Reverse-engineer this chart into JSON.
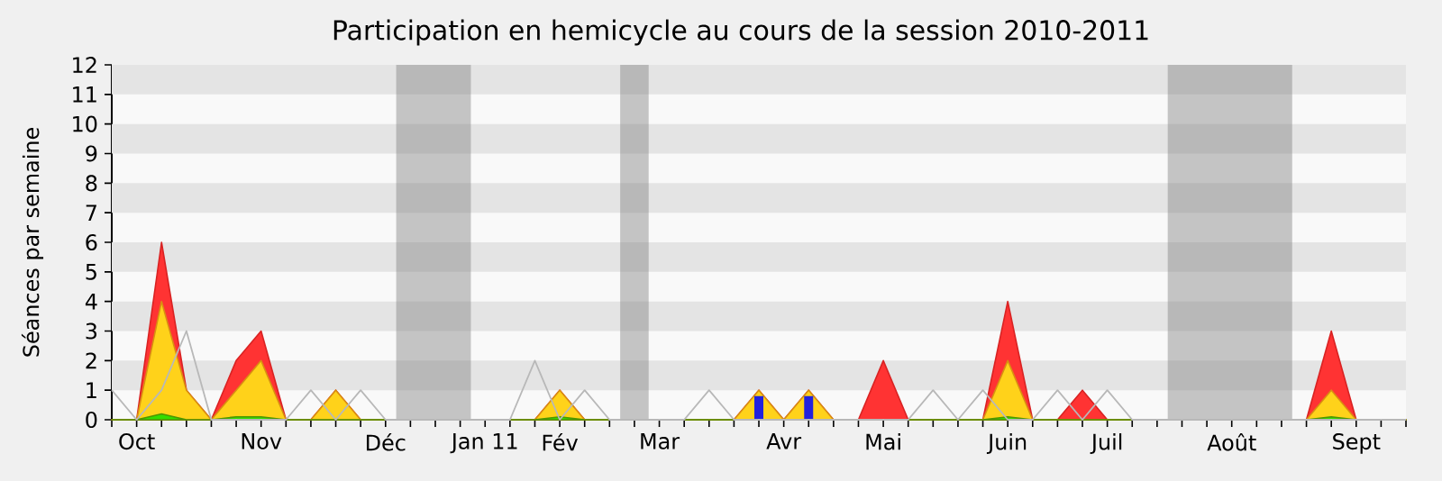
{
  "chart_data": {
    "type": "area",
    "title": "Participation en hemicycle au cours de la session 2010-2011",
    "ylabel": "Séances par semaine",
    "x": [
      "2010-09-28",
      "2010-10-05",
      "2010-10-12",
      "2010-10-19",
      "2010-10-26",
      "2010-11-02",
      "2010-11-09",
      "2010-11-16",
      "2010-11-23",
      "2010-11-30",
      "2010-12-07",
      "2010-12-14",
      "2010-12-21",
      "2010-12-28",
      "2011-01-04",
      "2011-01-11",
      "2011-01-18",
      "2011-01-25",
      "2011-02-01",
      "2011-02-08",
      "2011-02-15",
      "2011-02-22",
      "2011-03-01",
      "2011-03-08",
      "2011-03-15",
      "2011-03-22",
      "2011-03-29",
      "2011-04-05",
      "2011-04-12",
      "2011-04-19",
      "2011-04-26",
      "2011-05-03",
      "2011-05-10",
      "2011-05-17",
      "2011-05-24",
      "2011-05-31",
      "2011-06-07",
      "2011-06-14",
      "2011-06-21",
      "2011-06-28",
      "2011-07-05",
      "2011-07-12",
      "2011-07-19",
      "2011-07-26",
      "2011-08-02",
      "2011-08-09",
      "2011-08-16",
      "2011-08-23",
      "2011-08-30",
      "2011-09-06",
      "2011-09-13",
      "2011-09-20",
      "2011-09-27"
    ],
    "series": [
      {
        "color": "#ff3333",
        "values": [
          0,
          0,
          6,
          1,
          0,
          2,
          3,
          0,
          0,
          1,
          0,
          0,
          0,
          0,
          0,
          0,
          0,
          0,
          1,
          0,
          0,
          0,
          0,
          0,
          0,
          0,
          1,
          0,
          1,
          0,
          0,
          2,
          0,
          0,
          0,
          0,
          4,
          0,
          0,
          1,
          0,
          0,
          0,
          0,
          0,
          0,
          0,
          0,
          0,
          3,
          0,
          0,
          0
        ]
      },
      {
        "color": "#ffd21a",
        "values": [
          0,
          0,
          4,
          1,
          0,
          1,
          2,
          0,
          0,
          1,
          0,
          0,
          0,
          0,
          0,
          0,
          0,
          0,
          1,
          0,
          0,
          0,
          0,
          0,
          0,
          0,
          1,
          0,
          1,
          0,
          0,
          0,
          0,
          0,
          0,
          0,
          2,
          0,
          0,
          0,
          0,
          0,
          0,
          0,
          0,
          0,
          0,
          0,
          0,
          1,
          0,
          0,
          0
        ]
      },
      {
        "color": "#33dd00",
        "values": [
          0,
          0,
          0.2,
          0,
          0,
          0.1,
          0.1,
          0,
          0,
          0,
          0,
          0,
          0,
          0,
          0,
          0,
          0,
          0,
          0.1,
          0,
          0,
          0,
          0,
          0,
          0,
          0,
          0,
          0,
          0,
          0,
          0,
          0,
          0,
          0,
          0,
          0,
          0.1,
          0,
          0,
          0,
          0,
          0,
          0,
          0,
          0,
          0,
          0,
          0,
          0,
          0.1,
          0,
          0,
          0
        ]
      },
      {
        "type": "bar",
        "color": "#2222dd",
        "values": [
          null,
          null,
          null,
          null,
          null,
          null,
          null,
          null,
          null,
          null,
          null,
          null,
          null,
          null,
          null,
          null,
          null,
          null,
          null,
          null,
          null,
          null,
          null,
          null,
          null,
          null,
          0.8,
          null,
          0.8,
          null,
          null,
          null,
          null,
          null,
          null,
          null,
          null,
          null,
          null,
          null,
          null,
          null,
          null,
          null,
          null,
          null,
          null,
          null,
          null,
          null,
          null,
          null,
          null
        ]
      },
      {
        "type": "line",
        "color": "#b8b8b8",
        "values": [
          1,
          0,
          1,
          3,
          0,
          0,
          0,
          0,
          1,
          0,
          1,
          0,
          0,
          0,
          0,
          0,
          0,
          2,
          0,
          1,
          0,
          0,
          0,
          0,
          1,
          0,
          0,
          0,
          0,
          0,
          0,
          0,
          0,
          1,
          0,
          1,
          0,
          0,
          1,
          0,
          1,
          0,
          0,
          0,
          0,
          0,
          0,
          0,
          0,
          0,
          0,
          0,
          0
        ]
      }
    ],
    "xlim": [
      "2010-09-28",
      "2011-09-27"
    ],
    "ylim": [
      0,
      12
    ],
    "yticks": [
      0,
      1,
      2,
      3,
      4,
      5,
      6,
      7,
      8,
      9,
      10,
      11,
      12
    ],
    "xticks": [
      {
        "value": "2010-09-28",
        "label": null
      },
      {
        "value": "2010-10-05",
        "label": "Oct"
      },
      {
        "value": "2010-10-12",
        "label": null
      },
      {
        "value": "2010-10-19",
        "label": null
      },
      {
        "value": "2010-10-26",
        "label": null
      },
      {
        "value": "2010-11-02",
        "label": null
      },
      {
        "value": "2010-11-09",
        "label": "Nov"
      },
      {
        "value": "2010-11-16",
        "label": null
      },
      {
        "value": "2010-11-23",
        "label": null
      },
      {
        "value": "2010-11-30",
        "label": null
      },
      {
        "value": "2010-12-07",
        "label": null
      },
      {
        "value": "2010-12-14",
        "label": "Déc"
      },
      {
        "value": "2010-12-21",
        "label": null
      },
      {
        "value": "2010-12-28",
        "label": null
      },
      {
        "value": "2011-01-04",
        "label": null
      },
      {
        "value": "2011-01-11",
        "label": "Jan 11"
      },
      {
        "value": "2011-01-18",
        "label": null
      },
      {
        "value": "2011-01-25",
        "label": null
      },
      {
        "value": "2011-02-01",
        "label": "Fév"
      },
      {
        "value": "2011-02-08",
        "label": null
      },
      {
        "value": "2011-02-15",
        "label": null
      },
      {
        "value": "2011-02-22",
        "label": null
      },
      {
        "value": "2011-03-01",
        "label": "Mar"
      },
      {
        "value": "2011-03-08",
        "label": null
      },
      {
        "value": "2011-03-15",
        "label": null
      },
      {
        "value": "2011-03-22",
        "label": null
      },
      {
        "value": "2011-03-29",
        "label": null
      },
      {
        "value": "2011-04-05",
        "label": "Avr"
      },
      {
        "value": "2011-04-12",
        "label": null
      },
      {
        "value": "2011-04-19",
        "label": null
      },
      {
        "value": "2011-04-26",
        "label": null
      },
      {
        "value": "2011-05-03",
        "label": "Mai"
      },
      {
        "value": "2011-05-10",
        "label": null
      },
      {
        "value": "2011-05-17",
        "label": null
      },
      {
        "value": "2011-05-24",
        "label": null
      },
      {
        "value": "2011-05-31",
        "label": null
      },
      {
        "value": "2011-06-07",
        "label": "Juin"
      },
      {
        "value": "2011-06-14",
        "label": null
      },
      {
        "value": "2011-06-21",
        "label": null
      },
      {
        "value": "2011-06-28",
        "label": null
      },
      {
        "value": "2011-07-05",
        "label": "Juil"
      },
      {
        "value": "2011-07-12",
        "label": null
      },
      {
        "value": "2011-07-19",
        "label": null
      },
      {
        "value": "2011-07-26",
        "label": null
      },
      {
        "value": "2011-08-02",
        "label": null
      },
      {
        "value": "2011-08-09",
        "label": "Août"
      },
      {
        "value": "2011-08-16",
        "label": null
      },
      {
        "value": "2011-08-23",
        "label": null
      },
      {
        "value": "2011-08-30",
        "label": null
      },
      {
        "value": "2011-09-06",
        "label": null
      },
      {
        "value": "2011-09-13",
        "label": "Sept"
      },
      {
        "value": "2011-09-20",
        "label": null
      },
      {
        "value": "2011-09-27",
        "label": null
      }
    ],
    "bands": [
      {
        "axis": "x",
        "from": "2010-12-17",
        "to": "2011-01-07",
        "color": "#bbbbbb"
      },
      {
        "axis": "x",
        "from": "2011-02-18",
        "to": "2011-02-26",
        "color": "#bbbbbb"
      },
      {
        "axis": "x",
        "from": "2011-07-22",
        "to": "2011-08-26",
        "color": "#bbbbbb"
      }
    ]
  }
}
